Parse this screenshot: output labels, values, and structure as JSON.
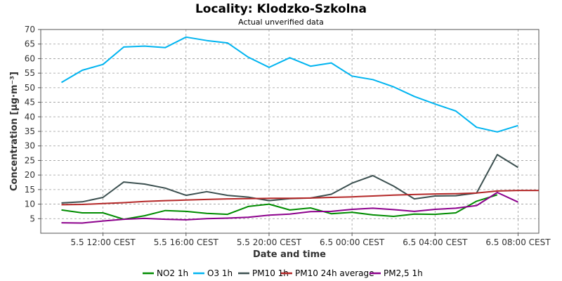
{
  "chart_data": {
    "type": "line",
    "title": "Locality: Klodzko-Szkolna",
    "subtitle": "Actual unverified data",
    "xlabel": "Date and time",
    "ylabel": "Concentration [µg·m⁻³]",
    "ylim": [
      0,
      70
    ],
    "yticks": [
      5,
      10,
      15,
      20,
      25,
      30,
      35,
      40,
      45,
      50,
      55,
      60,
      65,
      70
    ],
    "xlim": [
      "5.5 09:00",
      "6.5 09:00"
    ],
    "x": [
      "5.5 10:00",
      "5.5 11:00",
      "5.5 12:00",
      "5.5 13:00",
      "5.5 14:00",
      "5.5 15:00",
      "5.5 16:00",
      "5.5 17:00",
      "5.5 18:00",
      "5.5 19:00",
      "5.5 20:00",
      "5.5 21:00",
      "5.5 22:00",
      "5.5 23:00",
      "6.5 00:00",
      "6.5 01:00",
      "6.5 02:00",
      "6.5 03:00",
      "6.5 04:00",
      "6.5 05:00",
      "6.5 06:00",
      "6.5 07:00",
      "6.5 08:00",
      "6.5 09:00"
    ],
    "xticks": [
      "5.5 12:00 CEST",
      "5.5 16:00 CEST",
      "5.5 20:00 CEST",
      "6.5 00:00 CEST",
      "6.5 04:00 CEST",
      "6.5 08:00 CEST"
    ],
    "grid": true,
    "legend_position": "bottom",
    "series": [
      {
        "name": "NO2 1h",
        "color": "#008c00",
        "values": [
          8,
          7,
          7,
          4.8,
          6,
          7.8,
          7.5,
          6.8,
          6.5,
          9.2,
          10,
          8,
          8.7,
          6.7,
          7.2,
          6.3,
          5.8,
          6.6,
          6.5,
          7,
          11,
          13.2,
          null,
          null
        ]
      },
      {
        "name": "O3 1h",
        "color": "#00b4f0",
        "values": [
          51.8,
          56,
          58,
          64,
          64.3,
          63.8,
          67.4,
          66.2,
          65.4,
          60.5,
          57,
          60.3,
          57.4,
          58.5,
          54,
          52.8,
          50.3,
          47,
          44.4,
          42,
          36.4,
          34.8,
          37,
          null
        ]
      },
      {
        "name": "PM10 1h",
        "color": "#3c5050",
        "values": [
          10.4,
          10.8,
          12.3,
          17.6,
          16.9,
          15.5,
          13,
          14.3,
          13,
          12.4,
          11.2,
          11.9,
          12.1,
          13.4,
          17.2,
          19.8,
          16.2,
          11.8,
          12.8,
          12.9,
          13.8,
          27,
          22.6,
          null
        ]
      },
      {
        "name": "PM10 24h average",
        "color": "#b42828",
        "values": [
          9.8,
          9.9,
          10.2,
          10.5,
          10.9,
          11.2,
          11.4,
          11.6,
          11.8,
          11.9,
          12,
          12,
          12.1,
          12.3,
          12.5,
          12.8,
          13.1,
          13.3,
          13.5,
          13.6,
          13.8,
          14.5,
          14.7,
          14.7
        ]
      },
      {
        "name": "PM2,5 1h",
        "color": "#8c008c",
        "values": [
          3.6,
          3.5,
          4.2,
          4.8,
          5.1,
          4.8,
          4.6,
          5,
          5.2,
          5.5,
          6.2,
          6.6,
          7.4,
          7.5,
          8.2,
          8.6,
          8.1,
          7.5,
          8.2,
          8.6,
          9.5,
          14,
          10.7,
          null
        ]
      }
    ]
  }
}
